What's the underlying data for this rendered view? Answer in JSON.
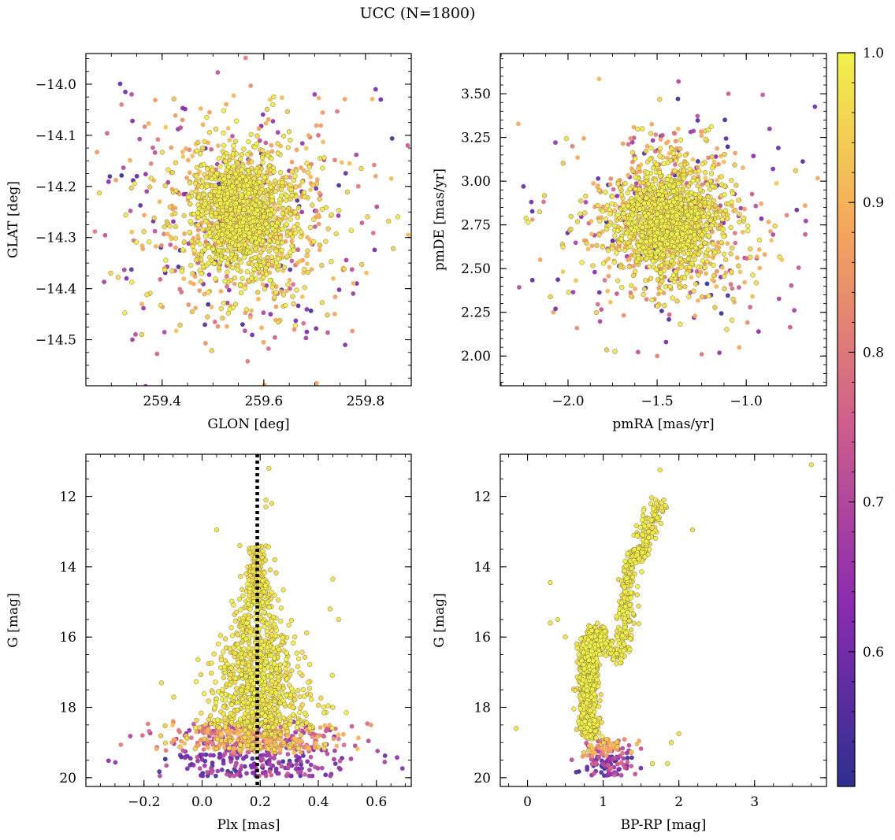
{
  "figure": {
    "title": "UCC (N=1800)"
  },
  "colormap": {
    "name": "plasma-like",
    "stops": [
      "#2e2f8f",
      "#8b2bb0",
      "#cf5f8c",
      "#f4a35d",
      "#f2f14a"
    ],
    "range": [
      0.51,
      1.0
    ],
    "ticks": [
      0.6,
      0.7,
      0.8,
      0.9,
      1.0
    ],
    "tick_labels": [
      "0.6",
      "0.7",
      "0.8",
      "0.9",
      "1.0"
    ]
  },
  "chart_data": [
    {
      "id": "glon-glat",
      "type": "scatter",
      "title": "",
      "xlabel": "GLON [deg]",
      "ylabel": "GLAT [deg]",
      "xlim": [
        259.25,
        259.89
      ],
      "ylim": [
        -14.59,
        -13.94
      ],
      "y_inverted": false,
      "xticks": [
        259.4,
        259.6,
        259.8
      ],
      "xtick_labels": [
        "259.4",
        "259.6",
        "259.8"
      ],
      "yticks": [
        -14.0,
        -14.1,
        -14.2,
        -14.3,
        -14.4,
        -14.5
      ],
      "ytick_labels": [
        "−14.0",
        "−14.1",
        "−14.2",
        "−14.3",
        "−14.4",
        "−14.5"
      ],
      "cluster": {
        "center": [
          259.56,
          -14.26
        ],
        "core_sigma": [
          0.05,
          0.06
        ],
        "field_sigma": [
          0.12,
          0.12
        ]
      },
      "points": [
        [
          259.32,
          -14.04
        ],
        [
          259.34,
          -14.02
        ],
        [
          259.82,
          -14.01
        ],
        [
          259.83,
          -14.03
        ],
        [
          259.36,
          -14.43
        ],
        [
          259.36,
          -14.49
        ],
        [
          259.76,
          -14.51
        ],
        [
          259.7,
          -14.02
        ],
        [
          259.33,
          -14.38
        ],
        [
          259.82,
          -14.18
        ],
        [
          259.66,
          -14.48
        ],
        [
          259.44,
          -14.07
        ]
      ]
    },
    {
      "id": "pm",
      "type": "scatter",
      "xlabel": "pmRA [mas/yr]",
      "ylabel": "pmDE [mas/yr]",
      "xlim": [
        -2.38,
        -0.55
      ],
      "ylim": [
        1.83,
        3.73
      ],
      "y_inverted": false,
      "xticks": [
        -2.0,
        -1.5,
        -1.0
      ],
      "xtick_labels": [
        "−2.0",
        "−1.5",
        "−1.0"
      ],
      "yticks": [
        2.0,
        2.25,
        2.5,
        2.75,
        3.0,
        3.25,
        3.5
      ],
      "ytick_labels": [
        "2.00",
        "2.25",
        "2.50",
        "2.75",
        "3.00",
        "3.25",
        "3.50"
      ],
      "cluster": {
        "center": [
          -1.44,
          2.77
        ],
        "core_sigma": [
          0.13,
          0.15
        ],
        "field_sigma": [
          0.3,
          0.3
        ]
      },
      "points": [
        [
          -2.25,
          2.97
        ],
        [
          -2.2,
          2.78
        ],
        [
          -2.07,
          2.27
        ],
        [
          -1.95,
          2.16
        ],
        [
          -1.25,
          2.01
        ],
        [
          -1.45,
          2.08
        ],
        [
          -1.38,
          3.57
        ],
        [
          -1.1,
          3.5
        ],
        [
          -0.82,
          3.19
        ],
        [
          -0.85,
          3.07
        ],
        [
          -0.67,
          2.86
        ],
        [
          -0.8,
          2.55
        ],
        [
          -1.5,
          2.0
        ]
      ]
    },
    {
      "id": "plx-g",
      "type": "scatter",
      "xlabel": "Plx [mas]",
      "ylabel": "G [mag]",
      "xlim": [
        -0.4,
        0.72
      ],
      "ylim": [
        20.25,
        10.8
      ],
      "y_inverted": true,
      "xticks": [
        -0.2,
        0.0,
        0.2,
        0.4,
        0.6
      ],
      "xtick_labels": [
        "−0.2",
        "0.0",
        "0.2",
        "0.4",
        "0.6"
      ],
      "yticks": [
        12,
        14,
        16,
        18,
        20
      ],
      "ytick_labels": [
        "12",
        "14",
        "16",
        "18",
        "20"
      ],
      "reference_line": {
        "x": 0.19,
        "style": "dotted"
      },
      "points": [
        [
          0.23,
          11.2
        ],
        [
          0.22,
          12.1
        ],
        [
          0.24,
          12.2
        ],
        [
          0.22,
          12.3
        ],
        [
          0.05,
          12.95
        ],
        [
          0.13,
          13.4
        ],
        [
          0.25,
          13.8
        ],
        [
          0.45,
          14.35
        ],
        [
          0.44,
          15.2
        ],
        [
          0.47,
          15.5
        ],
        [
          -0.14,
          17.3
        ],
        [
          0.45,
          18.0
        ]
      ]
    },
    {
      "id": "cmd",
      "type": "scatter",
      "xlabel": "BP-RP [mag]",
      "ylabel": "G [mag]",
      "xlim": [
        -0.36,
        3.95
      ],
      "ylim": [
        20.25,
        10.8
      ],
      "y_inverted": true,
      "xticks": [
        0,
        1,
        2,
        3
      ],
      "xtick_labels": [
        "0",
        "1",
        "2",
        "3"
      ],
      "yticks": [
        12,
        14,
        16,
        18,
        20
      ],
      "ytick_labels": [
        "12",
        "14",
        "16",
        "18",
        "20"
      ],
      "isochrone_sketch": [
        [
          0.85,
          19.9
        ],
        [
          0.8,
          18.5
        ],
        [
          0.78,
          17.5
        ],
        [
          0.8,
          16.8
        ],
        [
          0.86,
          16.2
        ],
        [
          0.9,
          15.9
        ],
        [
          1.05,
          16.2
        ],
        [
          1.2,
          16.6
        ],
        [
          1.28,
          16.0
        ],
        [
          1.3,
          15.3
        ],
        [
          1.32,
          14.6
        ],
        [
          1.33,
          14.1
        ],
        [
          1.45,
          13.7
        ],
        [
          1.55,
          13.3
        ],
        [
          1.65,
          12.7
        ],
        [
          1.75,
          12.2
        ]
      ],
      "points": [
        [
          3.75,
          11.1
        ],
        [
          1.75,
          11.25
        ],
        [
          1.8,
          12.1
        ],
        [
          1.7,
          12.2
        ],
        [
          2.18,
          12.95
        ],
        [
          0.3,
          14.45
        ],
        [
          0.3,
          15.6
        ],
        [
          0.4,
          15.5
        ],
        [
          0.5,
          16.0
        ],
        [
          0.65,
          16.2
        ],
        [
          -0.15,
          18.6
        ],
        [
          2.0,
          18.75
        ],
        [
          1.9,
          19.0
        ],
        [
          1.85,
          19.6
        ],
        [
          1.65,
          19.6
        ]
      ]
    }
  ]
}
